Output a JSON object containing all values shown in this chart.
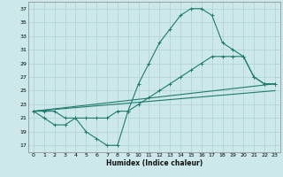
{
  "xlabel": "Humidex (Indice chaleur)",
  "xlim": [
    -0.5,
    23.5
  ],
  "ylim": [
    16,
    38
  ],
  "yticks": [
    17,
    19,
    21,
    23,
    25,
    27,
    29,
    31,
    33,
    35,
    37
  ],
  "xticks": [
    0,
    1,
    2,
    3,
    4,
    5,
    6,
    7,
    8,
    9,
    10,
    11,
    12,
    13,
    14,
    15,
    16,
    17,
    18,
    19,
    20,
    21,
    22,
    23
  ],
  "background_color": "#cce8ea",
  "grid_color": "#b0d0d2",
  "line_color": "#1e7b6e",
  "line1_x": [
    0,
    1,
    2,
    3,
    4,
    5,
    6,
    7,
    8,
    9,
    10,
    11,
    12,
    13,
    14,
    15,
    16,
    17,
    18,
    19,
    20,
    21,
    22,
    23
  ],
  "line1_y": [
    22,
    21,
    20,
    20,
    21,
    19,
    18,
    17,
    17,
    22,
    26,
    29,
    32,
    34,
    36,
    37,
    37,
    36,
    32,
    31,
    30,
    27,
    26,
    26
  ],
  "line2_x": [
    0,
    1,
    2,
    3,
    4,
    5,
    6,
    7,
    8,
    9,
    10,
    11,
    12,
    13,
    14,
    15,
    16,
    17,
    18,
    19,
    20,
    21,
    22,
    23
  ],
  "line2_y": [
    22,
    22,
    22,
    21,
    21,
    21,
    21,
    21,
    22,
    22,
    23,
    24,
    25,
    26,
    27,
    28,
    29,
    30,
    30,
    30,
    30,
    27,
    26,
    26
  ],
  "line3_x": [
    0,
    23
  ],
  "line3_y": [
    22,
    26
  ],
  "line4_x": [
    0,
    23
  ],
  "line4_y": [
    22,
    25
  ]
}
